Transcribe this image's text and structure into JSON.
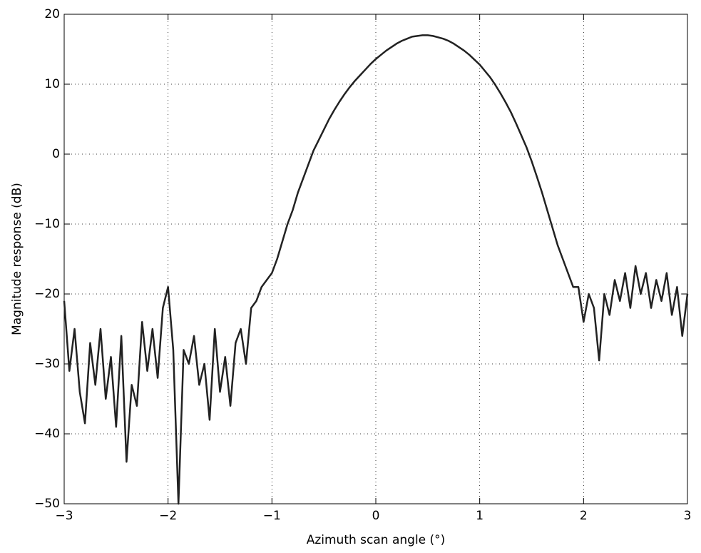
{
  "chart_data": {
    "type": "line",
    "xlabel": "Azimuth scan angle (°)",
    "ylabel": "Magnitude response (dB)",
    "color": "#222222",
    "grid": true,
    "xlim": [
      -3,
      3
    ],
    "ylim": [
      -50,
      20
    ],
    "xticks": [
      {
        "value": -3,
        "label": "−3"
      },
      {
        "value": -2,
        "label": "−2"
      },
      {
        "value": -1,
        "label": "−1"
      },
      0,
      1,
      2,
      3
    ],
    "yticks": [
      {
        "value": -50,
        "label": "−50"
      },
      {
        "value": -40,
        "label": "−40"
      },
      {
        "value": -30,
        "label": "−30"
      },
      {
        "value": -20,
        "label": "−20"
      },
      {
        "value": -10,
        "label": "−10"
      },
      0,
      10,
      20
    ],
    "x": [
      -3,
      -2.95,
      -2.9,
      -2.85,
      -2.8,
      -2.75,
      -2.7,
      -2.65,
      -2.6,
      -2.55,
      -2.5,
      -2.45,
      -2.4,
      -2.35,
      -2.3,
      -2.25,
      -2.2,
      -2.15,
      -2.1,
      -2.05,
      -2,
      -1.95,
      -1.9,
      -1.85,
      -1.8,
      -1.75,
      -1.7,
      -1.65,
      -1.6,
      -1.55,
      -1.5,
      -1.45,
      -1.4,
      -1.35,
      -1.3,
      -1.25,
      -1.2,
      -1.15,
      -1.1,
      -1.05,
      -1,
      -0.95,
      -0.9,
      -0.85,
      -0.8,
      -0.75,
      -0.7,
      -0.65,
      -0.6,
      -0.55,
      -0.5,
      -0.45,
      -0.4,
      -0.35,
      -0.3,
      -0.25,
      -0.2,
      -0.15,
      -0.1,
      -0.05,
      0,
      0.05,
      0.1,
      0.15,
      0.2,
      0.25,
      0.3,
      0.35,
      0.4,
      0.45,
      0.5,
      0.55,
      0.6,
      0.65,
      0.7,
      0.75,
      0.8,
      0.85,
      0.9,
      0.95,
      1,
      1.05,
      1.1,
      1.15,
      1.2,
      1.25,
      1.3,
      1.35,
      1.4,
      1.45,
      1.5,
      1.55,
      1.6,
      1.65,
      1.7,
      1.75,
      1.8,
      1.85,
      1.9,
      1.95,
      2,
      2.05,
      2.1,
      2.15,
      2.2,
      2.25,
      2.3,
      2.35,
      2.4,
      2.45,
      2.5,
      2.55,
      2.6,
      2.65,
      2.7,
      2.75,
      2.8,
      2.85,
      2.9,
      2.95,
      3
    ],
    "values": [
      -21,
      -31,
      -25,
      -34,
      -38.5,
      -27,
      -33,
      -25,
      -35,
      -29,
      -39,
      -26,
      -44,
      -33,
      -36,
      -24,
      -31,
      -25,
      -32,
      -22,
      -19,
      -28,
      -50,
      -28,
      -30,
      -26,
      -33,
      -30,
      -38,
      -25,
      -34,
      -29,
      -36,
      -27,
      -25,
      -30,
      -22,
      -21,
      -19,
      -18,
      -17,
      -15,
      -12.5,
      -10,
      -8,
      -5.5,
      -3.5,
      -1.5,
      0.5,
      2,
      3.5,
      5,
      6.3,
      7.5,
      8.6,
      9.6,
      10.5,
      11.3,
      12.1,
      12.9,
      13.6,
      14.2,
      14.8,
      15.3,
      15.8,
      16.2,
      16.5,
      16.8,
      16.9,
      17,
      17,
      16.9,
      16.7,
      16.5,
      16.2,
      15.8,
      15.3,
      14.8,
      14.2,
      13.5,
      12.8,
      11.9,
      11,
      9.9,
      8.7,
      7.4,
      6,
      4.4,
      2.7,
      1,
      -1,
      -3.2,
      -5.5,
      -8,
      -10.5,
      -13,
      -15,
      -17,
      -19,
      -19,
      -24,
      -20,
      -22,
      -29.5,
      -20,
      -23,
      -18,
      -21,
      -17,
      -22,
      -16,
      -20,
      -17,
      -22,
      -18,
      -21,
      -17,
      -23,
      -19,
      -26,
      -20
    ]
  }
}
